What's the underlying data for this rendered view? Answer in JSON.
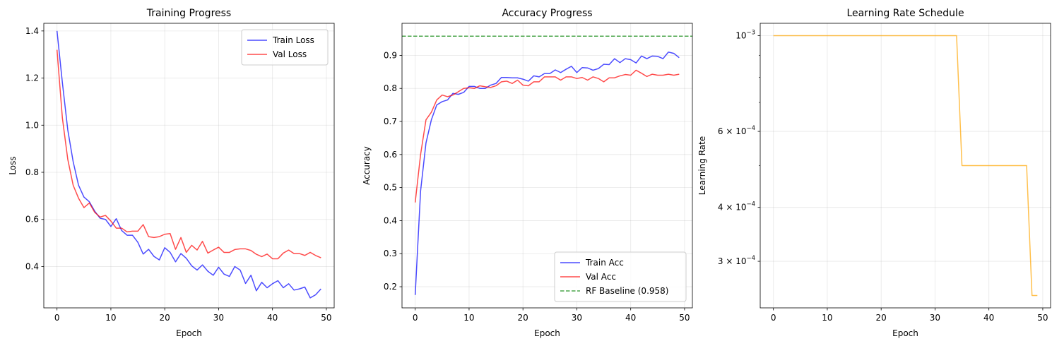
{
  "chart_data": [
    {
      "type": "line",
      "title": "Training Progress",
      "xlabel": "Epoch",
      "ylabel": "Loss",
      "xlim": [
        -2.45,
        51.45
      ],
      "ylim": [
        0.2245,
        1.4325
      ],
      "xticks": [
        0,
        10,
        20,
        30,
        40,
        50
      ],
      "xtick_labels": [
        "0",
        "10",
        "20",
        "30",
        "40",
        "50"
      ],
      "yticks": [
        0.4,
        0.6,
        0.8,
        1.0,
        1.2,
        1.4
      ],
      "ytick_labels": [
        "0.4",
        "0.6",
        "0.8",
        "1.0",
        "1.2",
        "1.4"
      ],
      "grid": true,
      "legend": "top-right",
      "series": [
        {
          "name": "Train Loss",
          "color": "#0000ff",
          "values": [
            1.4,
            1.18,
            0.98,
            0.845,
            0.745,
            0.695,
            0.675,
            0.635,
            0.605,
            0.6,
            0.57,
            0.603,
            0.553,
            0.533,
            0.533,
            0.503,
            0.453,
            0.473,
            0.443,
            0.428,
            0.48,
            0.46,
            0.42,
            0.455,
            0.435,
            0.403,
            0.385,
            0.407,
            0.38,
            0.363,
            0.397,
            0.368,
            0.358,
            0.4,
            0.385,
            0.328,
            0.363,
            0.297,
            0.333,
            0.31,
            0.327,
            0.34,
            0.31,
            0.327,
            0.3,
            0.305,
            0.313,
            0.267,
            0.28,
            0.305
          ]
        },
        {
          "name": "Val Loss",
          "color": "#ff0000",
          "values": [
            1.32,
            1.03,
            0.855,
            0.745,
            0.69,
            0.65,
            0.67,
            0.63,
            0.61,
            0.617,
            0.593,
            0.563,
            0.563,
            0.547,
            0.55,
            0.55,
            0.578,
            0.527,
            0.523,
            0.527,
            0.537,
            0.54,
            0.473,
            0.523,
            0.46,
            0.49,
            0.47,
            0.507,
            0.457,
            0.47,
            0.482,
            0.46,
            0.46,
            0.472,
            0.475,
            0.475,
            0.468,
            0.452,
            0.442,
            0.453,
            0.433,
            0.433,
            0.457,
            0.47,
            0.455,
            0.455,
            0.447,
            0.46,
            0.447,
            0.437
          ]
        }
      ]
    },
    {
      "type": "line",
      "title": "Accuracy Progress",
      "xlabel": "Epoch",
      "ylabel": "Accuracy",
      "xlim": [
        -2.45,
        51.45
      ],
      "ylim": [
        0.136,
        0.997
      ],
      "xticks": [
        0,
        10,
        20,
        30,
        40,
        50
      ],
      "xtick_labels": [
        "0",
        "10",
        "20",
        "30",
        "40",
        "50"
      ],
      "yticks": [
        0.2,
        0.3,
        0.4,
        0.5,
        0.6,
        0.7,
        0.8,
        0.9
      ],
      "ytick_labels": [
        "0.2",
        "0.3",
        "0.4",
        "0.5",
        "0.6",
        "0.7",
        "0.8",
        "0.9"
      ],
      "grid": true,
      "legend": "bottom-right",
      "series": [
        {
          "name": "Train Acc",
          "color": "#0000ff",
          "values": [
            0.175,
            0.49,
            0.635,
            0.705,
            0.75,
            0.76,
            0.765,
            0.785,
            0.782,
            0.788,
            0.806,
            0.806,
            0.8,
            0.8,
            0.81,
            0.815,
            0.833,
            0.833,
            0.832,
            0.832,
            0.828,
            0.822,
            0.838,
            0.835,
            0.845,
            0.845,
            0.856,
            0.848,
            0.858,
            0.867,
            0.848,
            0.863,
            0.862,
            0.855,
            0.86,
            0.873,
            0.872,
            0.89,
            0.878,
            0.89,
            0.887,
            0.877,
            0.898,
            0.89,
            0.898,
            0.897,
            0.89,
            0.91,
            0.906,
            0.893
          ]
        },
        {
          "name": "Val Acc",
          "color": "#ff0000",
          "values": [
            0.455,
            0.6,
            0.705,
            0.728,
            0.765,
            0.78,
            0.775,
            0.78,
            0.79,
            0.8,
            0.802,
            0.8,
            0.808,
            0.805,
            0.803,
            0.808,
            0.82,
            0.822,
            0.815,
            0.825,
            0.81,
            0.808,
            0.82,
            0.82,
            0.835,
            0.835,
            0.835,
            0.825,
            0.835,
            0.835,
            0.83,
            0.833,
            0.825,
            0.835,
            0.83,
            0.82,
            0.832,
            0.832,
            0.838,
            0.842,
            0.84,
            0.855,
            0.846,
            0.836,
            0.843,
            0.84,
            0.84,
            0.843,
            0.84,
            0.843
          ]
        },
        {
          "name": "RF Baseline (0.958)",
          "color": "#008000",
          "dashed": true,
          "constant": 0.958
        }
      ]
    },
    {
      "type": "line",
      "title": "Learning Rate Schedule",
      "xlabel": "Epoch",
      "ylabel": "Learning Rate",
      "yscale": "log",
      "xlim": [
        -2.45,
        51.45
      ],
      "ylim": [
        0.000234,
        0.001068
      ],
      "xticks": [
        0,
        10,
        20,
        30,
        40,
        50
      ],
      "xtick_labels": [
        "0",
        "10",
        "20",
        "30",
        "40",
        "50"
      ],
      "yticks": [
        0.001,
        0.0006,
        0.0004,
        0.0003
      ],
      "ytick_labels": [
        {
          "base": "10",
          "exp": "−3"
        },
        {
          "base": "6 × 10",
          "exp": "−4"
        },
        {
          "base": "4 × 10",
          "exp": "−4"
        },
        {
          "base": "3 × 10",
          "exp": "−4"
        }
      ],
      "minor_yticks": [
        0.0009,
        0.0008,
        0.0007,
        0.0005
      ],
      "grid": true,
      "series": [
        {
          "color": "#ffa500",
          "values": [
            0.001,
            0.001,
            0.001,
            0.001,
            0.001,
            0.001,
            0.001,
            0.001,
            0.001,
            0.001,
            0.001,
            0.001,
            0.001,
            0.001,
            0.001,
            0.001,
            0.001,
            0.001,
            0.001,
            0.001,
            0.001,
            0.001,
            0.001,
            0.001,
            0.001,
            0.001,
            0.001,
            0.001,
            0.001,
            0.001,
            0.001,
            0.001,
            0.001,
            0.001,
            0.001,
            0.0005,
            0.0005,
            0.0005,
            0.0005,
            0.0005,
            0.0005,
            0.0005,
            0.0005,
            0.0005,
            0.0005,
            0.0005,
            0.0005,
            0.0005,
            0.00025,
            0.00025
          ]
        }
      ]
    }
  ]
}
